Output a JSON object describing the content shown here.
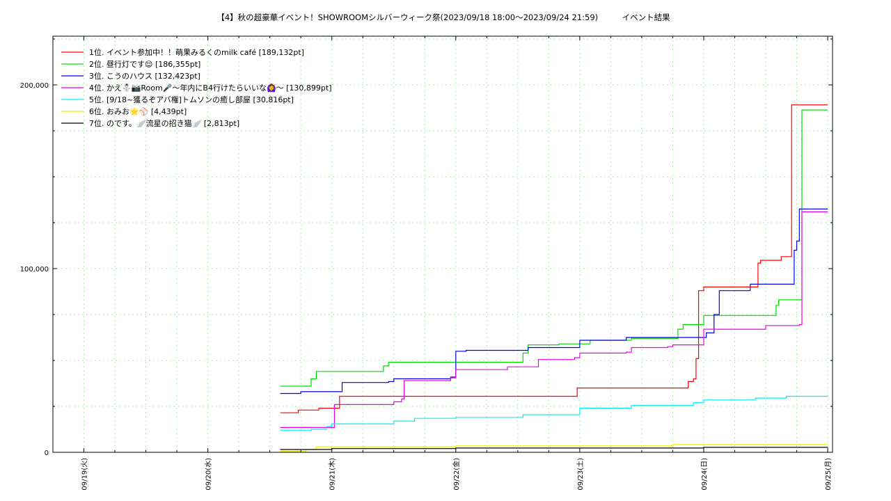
{
  "chart_data": {
    "type": "line",
    "title": "【4】秋の超豪華イベント！SHOWROOMシルバーウィーク祭(2023/09/18 18:00～2023/09/24 21:59)　　　イベント結果",
    "xlabel": "",
    "ylabel": "",
    "grid": true,
    "legend_position": "top-left",
    "x_ticks": [
      "09/19(火)",
      "09/20(水)",
      "09/21(木)",
      "09/22(金)",
      "09/23(土)",
      "09/24(日)",
      "09/25(月)"
    ],
    "xlim": [
      "2023-09-19 00:00",
      "2023-09-25 00:00"
    ],
    "y_ticks": [
      "0",
      "100,000",
      "200,000"
    ],
    "ylim": [
      0,
      200000
    ],
    "series": [
      {
        "name": "1位. イベント参加中！！萌果みるくのmilk café [189,132pt]",
        "color": "#ff0000",
        "points": [
          [
            "2023-09-20 14:00",
            21500
          ],
          [
            "2023-09-20 17:00",
            21500
          ],
          [
            "2023-09-20 17:30",
            23000
          ],
          [
            "2023-09-20 21:00",
            23000
          ],
          [
            "2023-09-20 21:30",
            24000
          ],
          [
            "2023-09-21 01:00",
            24000
          ],
          [
            "2023-09-21 01:30",
            30500
          ],
          [
            "2023-09-22 23:00",
            30500
          ],
          [
            "2023-09-22 23:30",
            35000
          ],
          [
            "2023-09-23 20:00",
            35000
          ],
          [
            "2023-09-23 21:00",
            38500
          ],
          [
            "2023-09-23 22:00",
            40000
          ],
          [
            "2023-09-23 22:30",
            51000
          ],
          [
            "2023-09-23 23:00",
            88000
          ],
          [
            "2023-09-24 00:00",
            90000
          ],
          [
            "2023-09-24 10:00",
            90000
          ],
          [
            "2023-09-24 10:30",
            103000
          ],
          [
            "2023-09-24 11:00",
            104500
          ],
          [
            "2023-09-24 14:30",
            104500
          ],
          [
            "2023-09-24 15:00",
            106500
          ],
          [
            "2023-09-24 16:30",
            106500
          ],
          [
            "2023-09-24 17:00",
            189132
          ],
          [
            "2023-09-25 00:00",
            189132
          ]
        ]
      },
      {
        "name": "2位. 昼行灯です😌 [186,355pt]",
        "color": "#00dd00",
        "points": [
          [
            "2023-09-20 14:00",
            36000
          ],
          [
            "2023-09-20 19:00",
            36000
          ],
          [
            "2023-09-20 20:00",
            40000
          ],
          [
            "2023-09-20 21:00",
            44000
          ],
          [
            "2023-09-21 09:00",
            44000
          ],
          [
            "2023-09-21 10:00",
            47000
          ],
          [
            "2023-09-21 11:00",
            49000
          ],
          [
            "2023-09-22 12:30",
            49000
          ],
          [
            "2023-09-22 13:00",
            54000
          ],
          [
            "2023-09-22 14:00",
            58500
          ],
          [
            "2023-09-22 20:00",
            59000
          ],
          [
            "2023-09-23 02:00",
            61000
          ],
          [
            "2023-09-23 10:00",
            62000
          ],
          [
            "2023-09-23 18:00",
            62000
          ],
          [
            "2023-09-23 19:00",
            67000
          ],
          [
            "2023-09-23 20:00",
            69500
          ],
          [
            "2023-09-23 23:30",
            69500
          ],
          [
            "2023-09-24 00:00",
            74500
          ],
          [
            "2023-09-24 12:00",
            74500
          ],
          [
            "2023-09-24 14:00",
            80000
          ],
          [
            "2023-09-24 14:30",
            83000
          ],
          [
            "2023-09-24 18:30",
            83000
          ],
          [
            "2023-09-24 19:00",
            186355
          ],
          [
            "2023-09-25 00:00",
            186355
          ]
        ]
      },
      {
        "name": "3位. こうのハウス [132,423pt]",
        "color": "#0000ee",
        "points": [
          [
            "2023-09-20 14:00",
            32000
          ],
          [
            "2023-09-20 17:00",
            32000
          ],
          [
            "2023-09-20 18:00",
            33000
          ],
          [
            "2023-09-20 22:00",
            33000
          ],
          [
            "2023-09-21 02:00",
            38000
          ],
          [
            "2023-09-21 11:00",
            38500
          ],
          [
            "2023-09-21 12:00",
            40000
          ],
          [
            "2023-09-21 23:00",
            41000
          ],
          [
            "2023-09-22 00:00",
            55000
          ],
          [
            "2023-09-22 02:00",
            55500
          ],
          [
            "2023-09-22 13:00",
            55500
          ],
          [
            "2023-09-22 14:00",
            57000
          ],
          [
            "2023-09-22 23:00",
            57000
          ],
          [
            "2023-09-23 00:00",
            61000
          ],
          [
            "2023-09-23 08:00",
            61000
          ],
          [
            "2023-09-23 09:00",
            62500
          ],
          [
            "2023-09-23 23:30",
            62500
          ],
          [
            "2023-09-24 00:30",
            65000
          ],
          [
            "2023-09-24 02:00",
            75000
          ],
          [
            "2023-09-24 03:00",
            88000
          ],
          [
            "2023-09-24 08:30",
            88000
          ],
          [
            "2023-09-24 09:00",
            91500
          ],
          [
            "2023-09-24 17:00",
            91500
          ],
          [
            "2023-09-24 17:30",
            110000
          ],
          [
            "2023-09-24 18:00",
            115000
          ],
          [
            "2023-09-24 18:30",
            132423
          ],
          [
            "2023-09-25 00:00",
            132423
          ]
        ]
      },
      {
        "name": "4位. かえ⛄📷Room🎤〜年内にB4行けたらいいな🙆‍♀️〜 [130,899pt]",
        "color": "#ee00ee",
        "points": [
          [
            "2023-09-20 14:00",
            13500
          ],
          [
            "2023-09-21 00:00",
            13500
          ],
          [
            "2023-09-21 00:30",
            26000
          ],
          [
            "2023-09-21 12:00",
            27500
          ],
          [
            "2023-09-21 13:30",
            29000
          ],
          [
            "2023-09-21 14:00",
            39000
          ],
          [
            "2023-09-21 23:00",
            40500
          ],
          [
            "2023-09-22 00:00",
            45000
          ],
          [
            "2023-09-22 10:00",
            46500
          ],
          [
            "2023-09-22 15:00",
            46500
          ],
          [
            "2023-09-22 16:00",
            50500
          ],
          [
            "2023-09-22 23:00",
            51500
          ],
          [
            "2023-09-23 00:00",
            54000
          ],
          [
            "2023-09-23 09:00",
            54500
          ],
          [
            "2023-09-23 10:00",
            57000
          ],
          [
            "2023-09-23 17:00",
            57500
          ],
          [
            "2023-09-23 18:00",
            58500
          ],
          [
            "2023-09-23 23:30",
            58500
          ],
          [
            "2023-09-24 00:00",
            67000
          ],
          [
            "2023-09-24 10:00",
            67000
          ],
          [
            "2023-09-24 12:00",
            69000
          ],
          [
            "2023-09-24 18:30",
            69500
          ],
          [
            "2023-09-24 19:00",
            130899
          ],
          [
            "2023-09-25 00:00",
            130899
          ]
        ]
      },
      {
        "name": "5位. [9/18~獲るぞアバ権]トムソンの癒し部屋 [30,816pt]",
        "color": "#00eeee",
        "points": [
          [
            "2023-09-20 14:00",
            12000
          ],
          [
            "2023-09-20 20:00",
            12500
          ],
          [
            "2023-09-20 23:00",
            14000
          ],
          [
            "2023-09-21 00:00",
            15500
          ],
          [
            "2023-09-21 12:00",
            17000
          ],
          [
            "2023-09-21 16:00",
            18500
          ],
          [
            "2023-09-22 00:00",
            19000
          ],
          [
            "2023-09-22 13:00",
            20500
          ],
          [
            "2023-09-23 00:00",
            24000
          ],
          [
            "2023-09-23 10:00",
            25500
          ],
          [
            "2023-09-23 22:00",
            27000
          ],
          [
            "2023-09-24 00:00",
            28500
          ],
          [
            "2023-09-24 10:00",
            29500
          ],
          [
            "2023-09-24 16:00",
            30500
          ],
          [
            "2023-09-25 00:00",
            30816
          ]
        ]
      },
      {
        "name": "6位. おみお🌟⚾ [4,439pt]",
        "color": "#eeee00",
        "points": [
          [
            "2023-09-20 14:00",
            500
          ],
          [
            "2023-09-20 19:00",
            1500
          ],
          [
            "2023-09-20 21:00",
            3000
          ],
          [
            "2023-09-22 00:00",
            3500
          ],
          [
            "2023-09-23 18:00",
            4200
          ],
          [
            "2023-09-25 00:00",
            4439
          ]
        ]
      },
      {
        "name": "7位. のです。🪽流星の招き猫🪽 [2,813pt]",
        "color": "#000000",
        "points": [
          [
            "2023-09-20 14:00",
            1500
          ],
          [
            "2023-09-21 00:00",
            2000
          ],
          [
            "2023-09-22 00:00",
            2300
          ],
          [
            "2023-09-24 00:00",
            2700
          ],
          [
            "2023-09-25 00:00",
            2813
          ]
        ]
      }
    ]
  }
}
